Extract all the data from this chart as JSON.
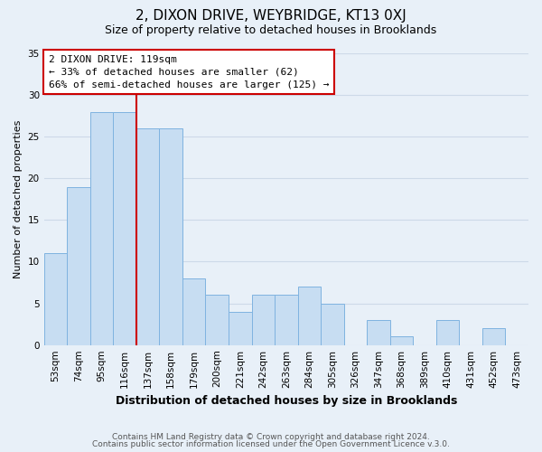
{
  "title": "2, DIXON DRIVE, WEYBRIDGE, KT13 0XJ",
  "subtitle": "Size of property relative to detached houses in Brooklands",
  "xlabel": "Distribution of detached houses by size in Brooklands",
  "ylabel": "Number of detached properties",
  "footer_lines": [
    "Contains HM Land Registry data © Crown copyright and database right 2024.",
    "Contains public sector information licensed under the Open Government Licence v.3.0."
  ],
  "bar_labels": [
    "53sqm",
    "74sqm",
    "95sqm",
    "116sqm",
    "137sqm",
    "158sqm",
    "179sqm",
    "200sqm",
    "221sqm",
    "242sqm",
    "263sqm",
    "284sqm",
    "305sqm",
    "326sqm",
    "347sqm",
    "368sqm",
    "389sqm",
    "410sqm",
    "431sqm",
    "452sqm",
    "473sqm"
  ],
  "bar_values": [
    11,
    19,
    28,
    28,
    26,
    26,
    8,
    6,
    4,
    6,
    6,
    7,
    5,
    0,
    3,
    1,
    0,
    3,
    0,
    2,
    0
  ],
  "bar_color": "#c7ddf2",
  "bar_edge_color": "#7fb3e0",
  "vline_x_index": 3,
  "vline_color": "#cc0000",
  "annotation_line1": "2 DIXON DRIVE: 119sqm",
  "annotation_line2": "← 33% of detached houses are smaller (62)",
  "annotation_line3": "66% of semi-detached houses are larger (125) →",
  "annotation_box_color": "#ffffff",
  "annotation_box_edge": "#cc0000",
  "ylim": [
    0,
    35
  ],
  "yticks": [
    0,
    5,
    10,
    15,
    20,
    25,
    30,
    35
  ],
  "grid_color": "#cdd9e8",
  "bg_color": "#e8f0f8",
  "title_fontsize": 11,
  "subtitle_fontsize": 9,
  "xlabel_fontsize": 9,
  "ylabel_fontsize": 8,
  "tick_fontsize": 7.5,
  "footer_fontsize": 6.5
}
